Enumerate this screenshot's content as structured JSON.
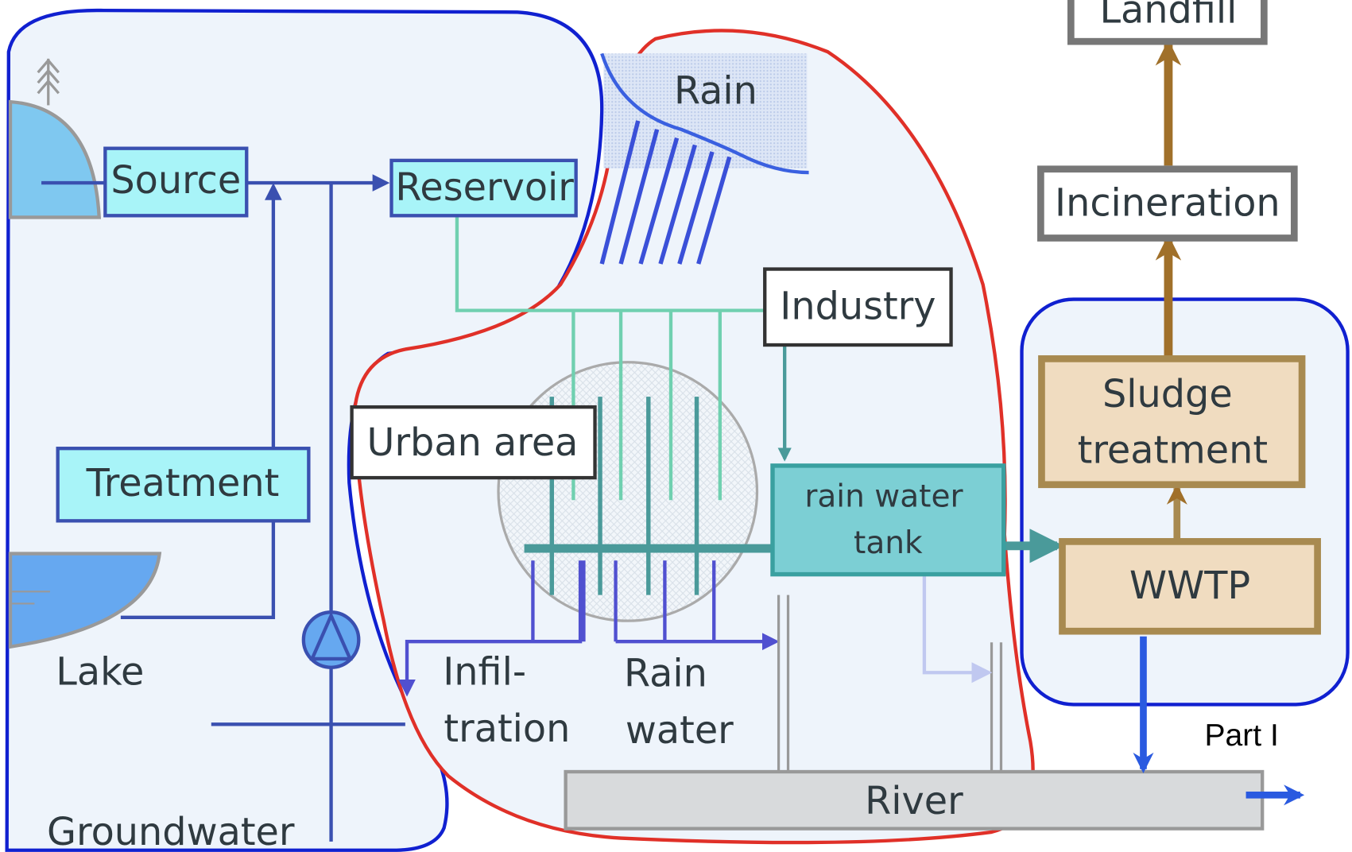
{
  "nodes": {
    "landfill": "Landfill",
    "incineration": "Incineration",
    "source": "Source",
    "reservoir": "Reservoir",
    "rain": "Rain",
    "industry": "Industry",
    "urban_area": "Urban area",
    "treatment": "Treatment",
    "rain_water_tank": [
      "rain water",
      "tank"
    ],
    "sludge_treatment": [
      "Sludge",
      "treatment"
    ],
    "wwtp": "WWTP",
    "lake": "Lake",
    "infiltration": [
      "Infil-",
      "tration"
    ],
    "rain_water": [
      "Rain",
      "water"
    ],
    "river": "River",
    "groundwater": "Groundwater",
    "part": "Part I"
  }
}
